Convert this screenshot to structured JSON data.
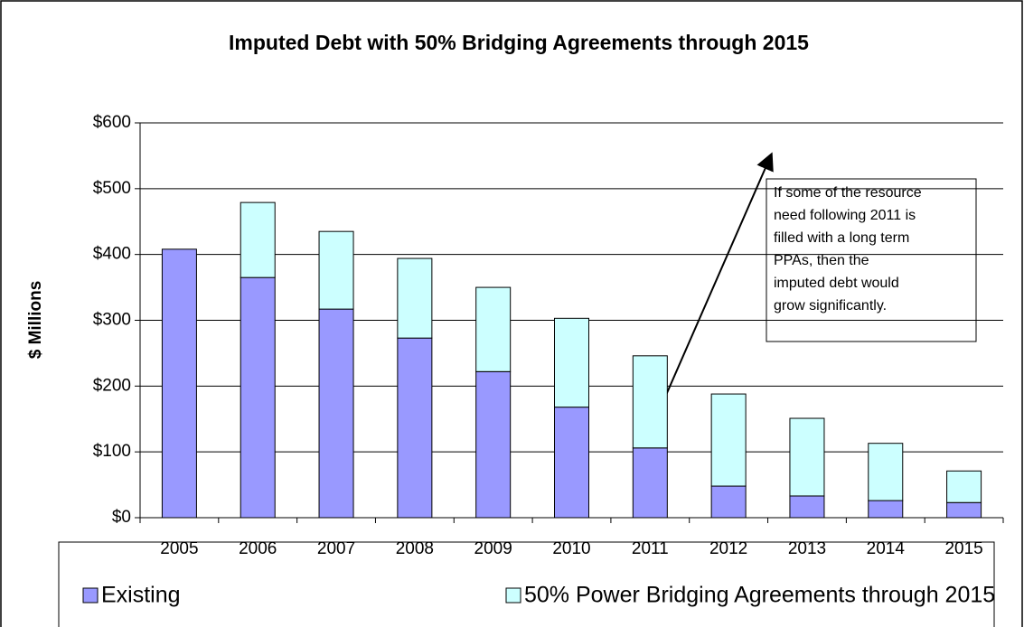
{
  "chart_data": {
    "type": "stacked_bar",
    "title": "Imputed Debt with 50% Bridging Agreements through 2015",
    "y_label": "$ Millions",
    "categories": [
      "2005",
      "2006",
      "2007",
      "2008",
      "2009",
      "2010",
      "2011",
      "2012",
      "2013",
      "2014",
      "2015"
    ],
    "series": [
      {
        "name": "Existing",
        "color": "#9999ff",
        "values": [
          408,
          365,
          317,
          273,
          222,
          168,
          106,
          48,
          33,
          26,
          23
        ]
      },
      {
        "name": "50% Power Bridging Agreements through 2015",
        "color": "#ccffff",
        "values": [
          0,
          114,
          118,
          121,
          128,
          135,
          140,
          140,
          118,
          87,
          48
        ]
      }
    ],
    "ylim": [
      0,
      600
    ],
    "yticks": [
      {
        "value": 0,
        "label": "$0"
      },
      {
        "value": 100,
        "label": "$100"
      },
      {
        "value": 200,
        "label": "$200"
      },
      {
        "value": 300,
        "label": "$300"
      },
      {
        "value": 400,
        "label": "$400"
      },
      {
        "value": 500,
        "label": "$500"
      },
      {
        "value": 600,
        "label": "$600"
      }
    ],
    "grid": true,
    "legend": "bottom",
    "annotation": [
      "If some of the resource",
      "need following 2011 is",
      "filled with a long term",
      "PPAs, then the",
      "imputed debt would",
      "grow significantly."
    ]
  }
}
